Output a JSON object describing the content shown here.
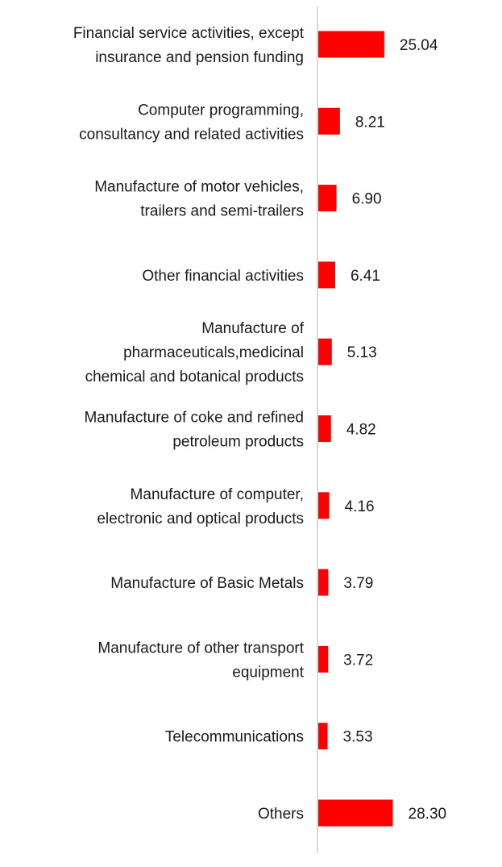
{
  "chart_data": {
    "type": "bar",
    "orientation": "horizontal",
    "title": "",
    "xlabel": "",
    "ylabel": "",
    "categories": [
      [
        "Financial service activities, except",
        "insurance and pension funding"
      ],
      [
        "Computer programming,",
        "consultancy and related activities"
      ],
      [
        "Manufacture of motor vehicles,",
        "trailers and semi-trailers"
      ],
      [
        "Other financial activities"
      ],
      [
        "Manufacture of",
        "pharmaceuticals,medicinal",
        "chemical and botanical products"
      ],
      [
        "Manufacture of coke and refined",
        "petroleum products"
      ],
      [
        "Manufacture of computer,",
        "electronic and optical products"
      ],
      [
        "Manufacture of Basic Metals"
      ],
      [
        "Manufacture of other transport",
        "equipment"
      ],
      [
        "Telecommunications"
      ],
      [
        "Others"
      ]
    ],
    "values": [
      25.04,
      8.21,
      6.9,
      6.41,
      5.13,
      4.82,
      4.16,
      3.79,
      3.72,
      3.53,
      28.3
    ],
    "value_labels": [
      "25.04",
      "8.21",
      "6.90",
      "6.41",
      "5.13",
      "4.82",
      "4.16",
      "3.79",
      "3.72",
      "3.53",
      "28.30"
    ],
    "xlim": [
      0,
      30
    ],
    "grid": false,
    "legend": "none",
    "bar_color": "#ff0000",
    "axis_color": "#cccccc"
  }
}
